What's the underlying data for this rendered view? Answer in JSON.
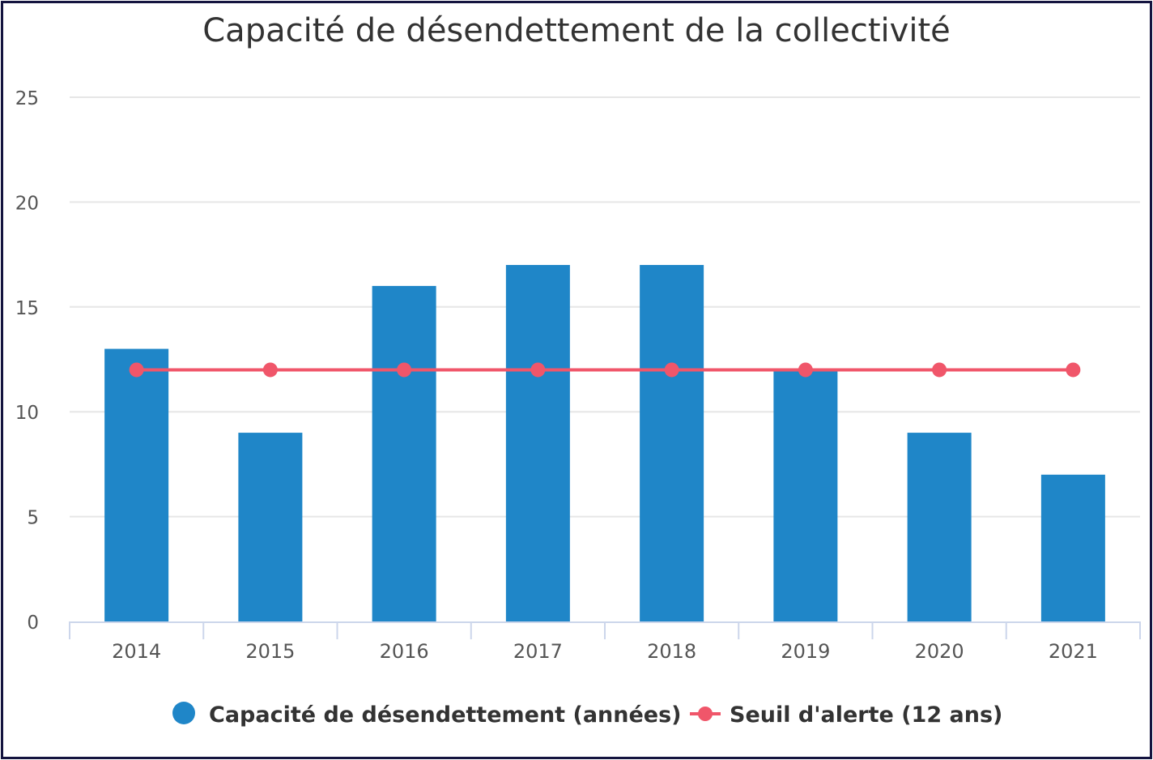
{
  "chart_data": {
    "type": "bar",
    "title": "Capacité de désendettement de la collectivité",
    "xlabel": "",
    "ylabel": "",
    "categories": [
      "2014",
      "2015",
      "2016",
      "2017",
      "2018",
      "2019",
      "2020",
      "2021"
    ],
    "ylim": [
      0,
      25
    ],
    "yticks": [
      "0",
      "5",
      "10",
      "15",
      "20",
      "25"
    ],
    "grid": true,
    "legend_position": "bottom",
    "series": [
      {
        "name": "Capacité de désendettement (années)",
        "type": "bar",
        "color": "#1f86c8",
        "values": [
          13,
          9,
          16,
          17,
          17,
          12,
          9,
          7
        ]
      },
      {
        "name": "Seuil d'alerte (12 ans)",
        "type": "line",
        "color": "#f0566a",
        "values": [
          12,
          12,
          12,
          12,
          12,
          12,
          12,
          12
        ]
      }
    ]
  }
}
